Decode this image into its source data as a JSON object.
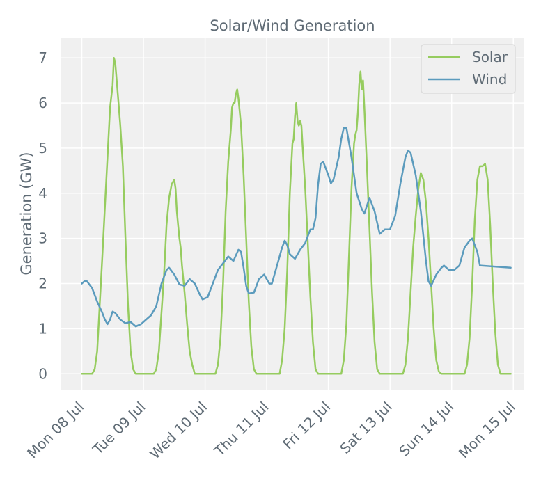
{
  "chart_data": {
    "type": "line",
    "title": "Solar/Wind Generation",
    "xlabel": "",
    "ylabel": "Generation (GW)",
    "ylim": [
      -0.35,
      7.45
    ],
    "xlim": [
      "2024-07-07T16:00",
      "2024-07-15T04:00"
    ],
    "grid": true,
    "legend_position": "top-right",
    "x_ticks": [
      "2024-07-08T00:00",
      "2024-07-09T00:00",
      "2024-07-10T00:00",
      "2024-07-11T00:00",
      "2024-07-12T00:00",
      "2024-07-13T00:00",
      "2024-07-14T00:00",
      "2024-07-15T00:00"
    ],
    "x_tick_labels": [
      "Mon 08 Jul",
      "Tue 09 Jul",
      "Wed 10 Jul",
      "Thu 11 Jul",
      "Fri 12 Jul",
      "Sat 13 Jul",
      "Sun 14 Jul",
      "Mon 15 Jul"
    ],
    "y_ticks": [
      0,
      1,
      2,
      3,
      4,
      5,
      6,
      7
    ],
    "y_tick_labels": [
      "0",
      "1",
      "2",
      "3",
      "4",
      "5",
      "6",
      "7"
    ],
    "colors": {
      "solar": "#96cc5f",
      "wind": "#5b9bbd",
      "plot_bg": "#f0f0f0",
      "grid": "#ffffff",
      "text": "#5f6b75"
    },
    "series": [
      {
        "name": "Solar",
        "color": "#96cc5f",
        "points": [
          [
            "2024-07-08T00:00",
            0
          ],
          [
            "2024-07-08T04:00",
            0
          ],
          [
            "2024-07-08T05:00",
            0.1
          ],
          [
            "2024-07-08T06:00",
            0.5
          ],
          [
            "2024-07-08T08:00",
            2.6
          ],
          [
            "2024-07-08T10:00",
            4.8
          ],
          [
            "2024-07-08T11:00",
            5.9
          ],
          [
            "2024-07-08T12:00",
            6.4
          ],
          [
            "2024-07-08T12:30",
            7.0
          ],
          [
            "2024-07-08T13:00",
            6.9
          ],
          [
            "2024-07-08T14:00",
            6.2
          ],
          [
            "2024-07-08T15:00",
            5.5
          ],
          [
            "2024-07-08T16:00",
            4.6
          ],
          [
            "2024-07-08T17:00",
            3.0
          ],
          [
            "2024-07-08T18:00",
            1.5
          ],
          [
            "2024-07-08T19:00",
            0.5
          ],
          [
            "2024-07-08T20:00",
            0.1
          ],
          [
            "2024-07-08T21:00",
            0
          ],
          [
            "2024-07-09T04:00",
            0
          ],
          [
            "2024-07-09T05:00",
            0.1
          ],
          [
            "2024-07-09T06:00",
            0.5
          ],
          [
            "2024-07-09T08:00",
            2.2
          ],
          [
            "2024-07-09T09:00",
            3.3
          ],
          [
            "2024-07-09T10:00",
            3.9
          ],
          [
            "2024-07-09T11:00",
            4.2
          ],
          [
            "2024-07-09T12:00",
            4.3
          ],
          [
            "2024-07-09T12:30",
            4.1
          ],
          [
            "2024-07-09T13:00",
            3.6
          ],
          [
            "2024-07-09T13:30",
            3.3
          ],
          [
            "2024-07-09T14:00",
            3.0
          ],
          [
            "2024-07-09T14:30",
            2.8
          ],
          [
            "2024-07-09T15:00",
            2.4
          ],
          [
            "2024-07-09T16:00",
            1.8
          ],
          [
            "2024-07-09T17:00",
            1.1
          ],
          [
            "2024-07-09T18:00",
            0.5
          ],
          [
            "2024-07-09T19:00",
            0.2
          ],
          [
            "2024-07-09T20:00",
            0
          ],
          [
            "2024-07-10T04:00",
            0
          ],
          [
            "2024-07-10T05:00",
            0.2
          ],
          [
            "2024-07-10T06:00",
            0.8
          ],
          [
            "2024-07-10T07:00",
            2.0
          ],
          [
            "2024-07-10T08:00",
            3.6
          ],
          [
            "2024-07-10T09:00",
            4.7
          ],
          [
            "2024-07-10T10:00",
            5.4
          ],
          [
            "2024-07-10T10:30",
            5.9
          ],
          [
            "2024-07-10T11:00",
            6.0
          ],
          [
            "2024-07-10T11:30",
            6.0
          ],
          [
            "2024-07-10T12:00",
            6.2
          ],
          [
            "2024-07-10T12:30",
            6.3
          ],
          [
            "2024-07-10T13:00",
            6.1
          ],
          [
            "2024-07-10T14:00",
            5.5
          ],
          [
            "2024-07-10T15:00",
            4.4
          ],
          [
            "2024-07-10T16:00",
            3.0
          ],
          [
            "2024-07-10T17:00",
            1.6
          ],
          [
            "2024-07-10T18:00",
            0.6
          ],
          [
            "2024-07-10T19:00",
            0.1
          ],
          [
            "2024-07-10T20:00",
            0
          ],
          [
            "2024-07-11T05:00",
            0
          ],
          [
            "2024-07-11T06:00",
            0.3
          ],
          [
            "2024-07-11T07:00",
            1.0
          ],
          [
            "2024-07-11T08:00",
            2.3
          ],
          [
            "2024-07-11T09:00",
            4.0
          ],
          [
            "2024-07-11T10:00",
            5.1
          ],
          [
            "2024-07-11T10:30",
            5.2
          ],
          [
            "2024-07-11T11:00",
            5.7
          ],
          [
            "2024-07-11T11:30",
            6.0
          ],
          [
            "2024-07-11T12:00",
            5.6
          ],
          [
            "2024-07-11T12:30",
            5.5
          ],
          [
            "2024-07-11T13:00",
            5.6
          ],
          [
            "2024-07-11T13:30",
            5.5
          ],
          [
            "2024-07-11T14:00",
            5.0
          ],
          [
            "2024-07-11T15:00",
            4.1
          ],
          [
            "2024-07-11T16:00",
            2.9
          ],
          [
            "2024-07-11T17:00",
            1.7
          ],
          [
            "2024-07-11T18:00",
            0.7
          ],
          [
            "2024-07-11T19:00",
            0.1
          ],
          [
            "2024-07-11T20:00",
            0
          ],
          [
            "2024-07-12T05:00",
            0
          ],
          [
            "2024-07-12T06:00",
            0.3
          ],
          [
            "2024-07-12T07:00",
            1.1
          ],
          [
            "2024-07-12T08:00",
            2.6
          ],
          [
            "2024-07-12T09:00",
            4.1
          ],
          [
            "2024-07-12T10:00",
            5.1
          ],
          [
            "2024-07-12T10:30",
            5.3
          ],
          [
            "2024-07-12T11:00",
            5.4
          ],
          [
            "2024-07-12T11:30",
            5.8
          ],
          [
            "2024-07-12T12:00",
            6.4
          ],
          [
            "2024-07-12T12:30",
            6.7
          ],
          [
            "2024-07-12T13:00",
            6.3
          ],
          [
            "2024-07-12T13:30",
            6.5
          ],
          [
            "2024-07-12T14:00",
            5.9
          ],
          [
            "2024-07-12T15:00",
            4.6
          ],
          [
            "2024-07-12T16:00",
            3.2
          ],
          [
            "2024-07-12T17:00",
            1.8
          ],
          [
            "2024-07-12T18:00",
            0.7
          ],
          [
            "2024-07-12T19:00",
            0.1
          ],
          [
            "2024-07-12T20:00",
            0
          ],
          [
            "2024-07-13T05:00",
            0
          ],
          [
            "2024-07-13T06:00",
            0.2
          ],
          [
            "2024-07-13T07:00",
            0.8
          ],
          [
            "2024-07-13T08:00",
            1.8
          ],
          [
            "2024-07-13T09:00",
            2.8
          ],
          [
            "2024-07-13T10:00",
            3.5
          ],
          [
            "2024-07-13T11:00",
            4.1
          ],
          [
            "2024-07-13T12:00",
            4.45
          ],
          [
            "2024-07-13T13:00",
            4.3
          ],
          [
            "2024-07-13T14:00",
            3.8
          ],
          [
            "2024-07-13T15:00",
            3.0
          ],
          [
            "2024-07-13T16:00",
            2.0
          ],
          [
            "2024-07-13T17:00",
            1.0
          ],
          [
            "2024-07-13T18:00",
            0.3
          ],
          [
            "2024-07-13T19:00",
            0.05
          ],
          [
            "2024-07-13T20:00",
            0
          ],
          [
            "2024-07-14T05:00",
            0
          ],
          [
            "2024-07-14T06:00",
            0.2
          ],
          [
            "2024-07-14T07:00",
            0.8
          ],
          [
            "2024-07-14T08:00",
            2.0
          ],
          [
            "2024-07-14T09:00",
            3.4
          ],
          [
            "2024-07-14T10:00",
            4.3
          ],
          [
            "2024-07-14T11:00",
            4.6
          ],
          [
            "2024-07-14T12:00",
            4.6
          ],
          [
            "2024-07-14T13:00",
            4.65
          ],
          [
            "2024-07-14T14:00",
            4.3
          ],
          [
            "2024-07-14T15:00",
            3.3
          ],
          [
            "2024-07-14T16:00",
            2.0
          ],
          [
            "2024-07-14T17:00",
            0.9
          ],
          [
            "2024-07-14T18:00",
            0.2
          ],
          [
            "2024-07-14T19:00",
            0
          ],
          [
            "2024-07-14T23:00",
            0
          ]
        ]
      },
      {
        "name": "Wind",
        "color": "#5b9bbd",
        "points": [
          [
            "2024-07-08T00:00",
            2.0
          ],
          [
            "2024-07-08T01:00",
            2.05
          ],
          [
            "2024-07-08T02:00",
            2.05
          ],
          [
            "2024-07-08T04:00",
            1.9
          ],
          [
            "2024-07-08T06:00",
            1.6
          ],
          [
            "2024-07-08T08:00",
            1.35
          ],
          [
            "2024-07-08T09:00",
            1.2
          ],
          [
            "2024-07-08T10:00",
            1.1
          ],
          [
            "2024-07-08T11:00",
            1.2
          ],
          [
            "2024-07-08T12:00",
            1.38
          ],
          [
            "2024-07-08T13:00",
            1.35
          ],
          [
            "2024-07-08T15:00",
            1.2
          ],
          [
            "2024-07-08T17:00",
            1.12
          ],
          [
            "2024-07-08T19:00",
            1.15
          ],
          [
            "2024-07-08T21:00",
            1.05
          ],
          [
            "2024-07-08T23:00",
            1.1
          ],
          [
            "2024-07-09T01:00",
            1.2
          ],
          [
            "2024-07-09T03:00",
            1.3
          ],
          [
            "2024-07-09T05:00",
            1.5
          ],
          [
            "2024-07-09T07:00",
            2.0
          ],
          [
            "2024-07-09T09:00",
            2.3
          ],
          [
            "2024-07-09T10:00",
            2.35
          ],
          [
            "2024-07-09T12:00",
            2.2
          ],
          [
            "2024-07-09T14:00",
            1.98
          ],
          [
            "2024-07-09T16:00",
            1.95
          ],
          [
            "2024-07-09T18:00",
            2.1
          ],
          [
            "2024-07-09T20:00",
            2.0
          ],
          [
            "2024-07-09T22:00",
            1.75
          ],
          [
            "2024-07-09T23:00",
            1.65
          ],
          [
            "2024-07-10T01:00",
            1.7
          ],
          [
            "2024-07-10T03:00",
            2.0
          ],
          [
            "2024-07-10T05:00",
            2.3
          ],
          [
            "2024-07-10T07:00",
            2.45
          ],
          [
            "2024-07-10T09:00",
            2.6
          ],
          [
            "2024-07-10T11:00",
            2.5
          ],
          [
            "2024-07-10T13:00",
            2.75
          ],
          [
            "2024-07-10T14:00",
            2.7
          ],
          [
            "2024-07-10T15:00",
            2.35
          ],
          [
            "2024-07-10T16:00",
            1.95
          ],
          [
            "2024-07-10T17:00",
            1.78
          ],
          [
            "2024-07-10T19:00",
            1.8
          ],
          [
            "2024-07-10T21:00",
            2.1
          ],
          [
            "2024-07-10T23:00",
            2.2
          ],
          [
            "2024-07-11T01:00",
            2.0
          ],
          [
            "2024-07-11T02:00",
            2.0
          ],
          [
            "2024-07-11T04:00",
            2.4
          ],
          [
            "2024-07-11T06:00",
            2.8
          ],
          [
            "2024-07-11T07:00",
            2.95
          ],
          [
            "2024-07-11T08:00",
            2.85
          ],
          [
            "2024-07-11T09:00",
            2.65
          ],
          [
            "2024-07-11T11:00",
            2.55
          ],
          [
            "2024-07-11T13:00",
            2.75
          ],
          [
            "2024-07-11T15:00",
            2.9
          ],
          [
            "2024-07-11T17:00",
            3.2
          ],
          [
            "2024-07-11T18:00",
            3.2
          ],
          [
            "2024-07-11T19:00",
            3.45
          ],
          [
            "2024-07-11T20:00",
            4.2
          ],
          [
            "2024-07-11T21:00",
            4.65
          ],
          [
            "2024-07-11T22:00",
            4.7
          ],
          [
            "2024-07-12T00:00",
            4.4
          ],
          [
            "2024-07-12T01:00",
            4.22
          ],
          [
            "2024-07-12T02:00",
            4.3
          ],
          [
            "2024-07-12T04:00",
            4.8
          ],
          [
            "2024-07-12T05:00",
            5.2
          ],
          [
            "2024-07-12T06:00",
            5.45
          ],
          [
            "2024-07-12T07:00",
            5.45
          ],
          [
            "2024-07-12T09:00",
            4.8
          ],
          [
            "2024-07-12T11:00",
            4.0
          ],
          [
            "2024-07-12T13:00",
            3.65
          ],
          [
            "2024-07-12T14:00",
            3.55
          ],
          [
            "2024-07-12T16:00",
            3.9
          ],
          [
            "2024-07-12T18:00",
            3.6
          ],
          [
            "2024-07-12T20:00",
            3.1
          ],
          [
            "2024-07-12T22:00",
            3.2
          ],
          [
            "2024-07-13T00:00",
            3.2
          ],
          [
            "2024-07-13T02:00",
            3.5
          ],
          [
            "2024-07-13T04:00",
            4.2
          ],
          [
            "2024-07-13T06:00",
            4.8
          ],
          [
            "2024-07-13T07:00",
            4.95
          ],
          [
            "2024-07-13T08:00",
            4.9
          ],
          [
            "2024-07-13T10:00",
            4.4
          ],
          [
            "2024-07-13T12:00",
            3.6
          ],
          [
            "2024-07-13T14:00",
            2.5
          ],
          [
            "2024-07-13T15:00",
            2.05
          ],
          [
            "2024-07-13T16:00",
            1.95
          ],
          [
            "2024-07-13T18:00",
            2.2
          ],
          [
            "2024-07-13T20:00",
            2.35
          ],
          [
            "2024-07-13T21:00",
            2.4
          ],
          [
            "2024-07-13T23:00",
            2.3
          ],
          [
            "2024-07-14T01:00",
            2.3
          ],
          [
            "2024-07-14T03:00",
            2.4
          ],
          [
            "2024-07-14T05:00",
            2.8
          ],
          [
            "2024-07-14T07:00",
            2.95
          ],
          [
            "2024-07-14T08:00",
            3.0
          ],
          [
            "2024-07-14T10:00",
            2.7
          ],
          [
            "2024-07-14T11:00",
            2.4
          ],
          [
            "2024-07-14T23:00",
            2.35
          ]
        ]
      }
    ]
  }
}
